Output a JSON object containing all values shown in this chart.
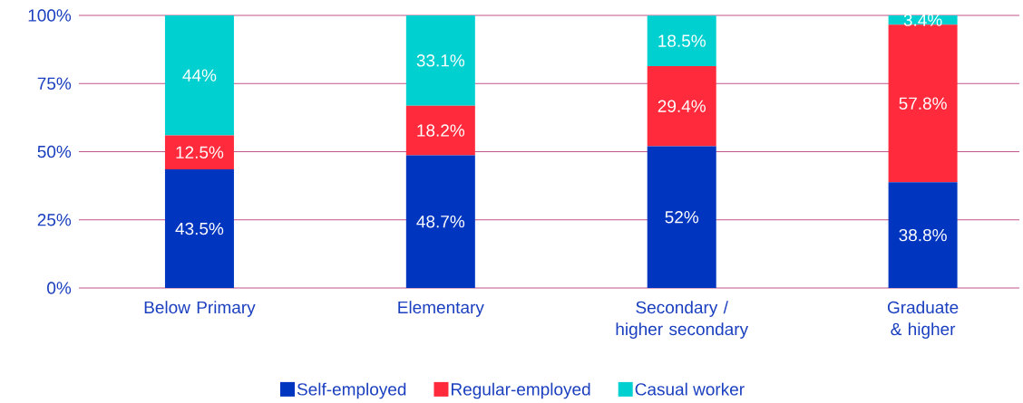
{
  "chart_data": {
    "type": "bar",
    "stacked": true,
    "categories": [
      "Below Primary",
      "Elementary",
      "Secondary / higher secondary",
      "Graduate & higher"
    ],
    "series": [
      {
        "name": "Self-employed",
        "color": "#0036bf",
        "values": [
          43.5,
          48.7,
          52,
          38.8
        ],
        "value_labels": [
          "43.5%",
          "48.7%",
          "52%",
          "38.8%"
        ]
      },
      {
        "name": "Regular-employed",
        "color": "#ff2b3c",
        "values": [
          12.5,
          18.2,
          29.4,
          57.8
        ],
        "value_labels": [
          "12.5%",
          "18.2%",
          "29.4%",
          "57.8%"
        ]
      },
      {
        "name": "Casual worker",
        "color": "#00d0d0",
        "values": [
          44,
          33.1,
          18.5,
          3.4
        ],
        "value_labels": [
          "44%",
          "33.1%",
          "18.5%",
          "3.4%"
        ]
      }
    ],
    "ylim": [
      0,
      100
    ],
    "yticks": [
      {
        "value": 0,
        "label": "0%"
      },
      {
        "value": 25,
        "label": "25%"
      },
      {
        "value": 50,
        "label": "50%"
      },
      {
        "value": 75,
        "label": "75%"
      },
      {
        "value": 100,
        "label": "100%"
      }
    ],
    "grid": "y",
    "legend": "bottom"
  }
}
